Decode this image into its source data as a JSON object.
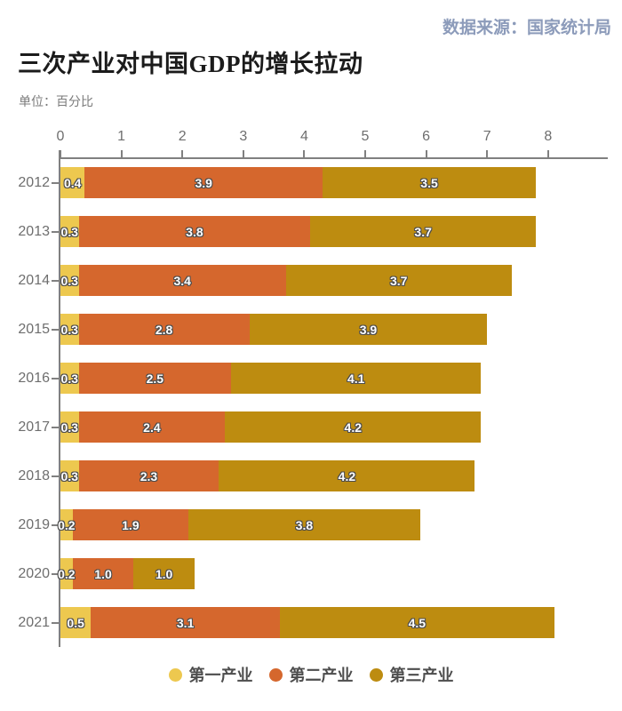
{
  "source": "数据来源：国家统计局",
  "title": "三次产业对中国GDP的增长拉动",
  "unit_label": "单位：百分比",
  "colors": {
    "primary_industry": "#edc84f",
    "secondary_industry": "#d5672d",
    "tertiary_industry": "#bd8c10",
    "source_text": "#8c9bba",
    "axis_line": "#808080",
    "title_text": "#1b1b1b",
    "muted_text": "#6e6e6e",
    "value_label_fill": "#ffffff",
    "value_label_outline": "#4d4d4d"
  },
  "chart_data": {
    "type": "bar",
    "orientation": "horizontal",
    "stacked": true,
    "title": "三次产业对中国GDP的增长拉动",
    "unit": "百分比",
    "categories": [
      "2012",
      "2013",
      "2014",
      "2015",
      "2016",
      "2017",
      "2018",
      "2019",
      "2020",
      "2021"
    ],
    "series": [
      {
        "name": "第一产业",
        "color": "#edc84f",
        "values": [
          0.4,
          0.3,
          0.3,
          0.3,
          0.3,
          0.3,
          0.3,
          0.2,
          0.2,
          0.5
        ]
      },
      {
        "name": "第二产业",
        "color": "#d5672d",
        "values": [
          3.9,
          3.8,
          3.4,
          2.8,
          2.5,
          2.4,
          2.3,
          1.9,
          1.0,
          3.1
        ]
      },
      {
        "name": "第三产业",
        "color": "#bd8c10",
        "values": [
          3.5,
          3.7,
          3.7,
          3.9,
          4.1,
          4.2,
          4.2,
          3.8,
          1.0,
          4.5
        ]
      }
    ],
    "totals": [
      7.8,
      7.8,
      7.4,
      7.0,
      6.9,
      6.9,
      6.8,
      5.9,
      2.2,
      8.1
    ],
    "x_ticks": [
      0,
      1,
      2,
      3,
      4,
      5,
      6,
      7,
      8
    ],
    "xlim": [
      0,
      9
    ],
    "grid": false,
    "value_labels": true,
    "legend_position": "bottom"
  }
}
